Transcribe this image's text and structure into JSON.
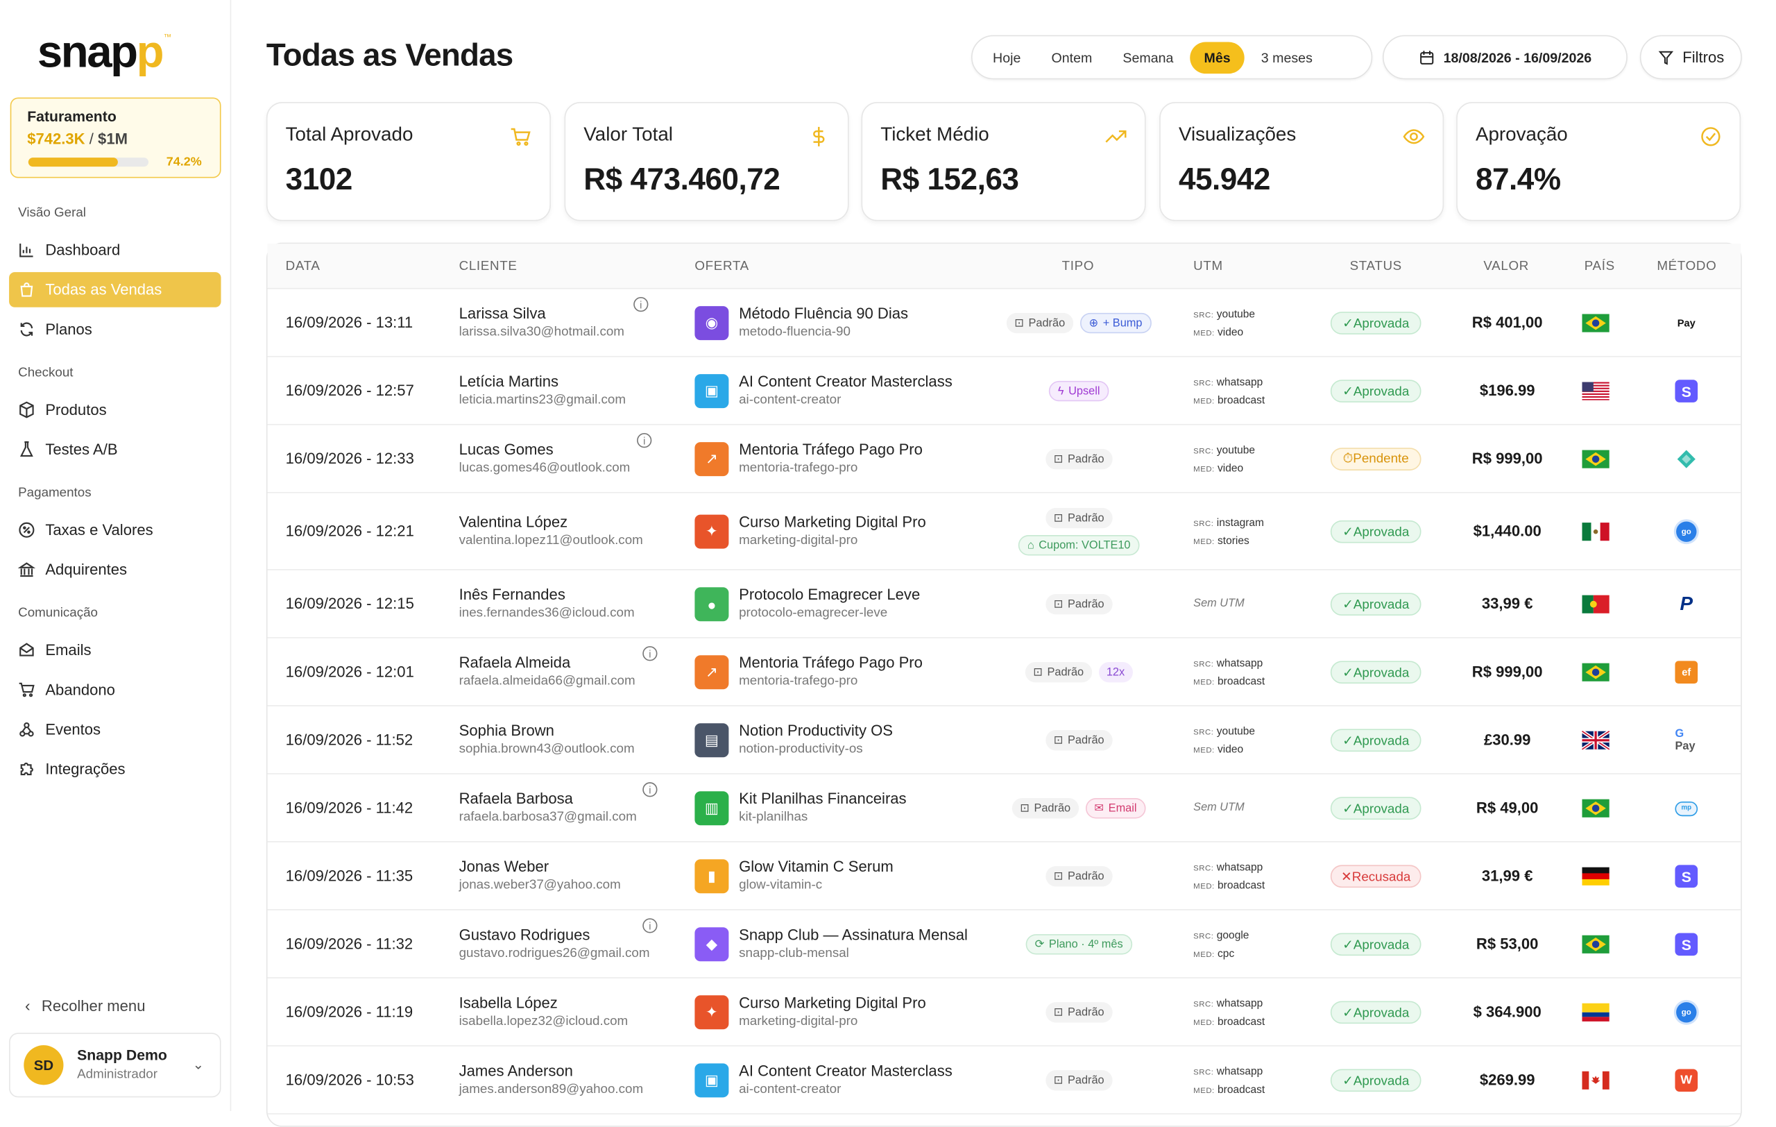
{
  "app": {
    "logo_a": "snap",
    "logo_b": "p",
    "logo_tm": "™"
  },
  "faturamento": {
    "title": "Faturamento",
    "current": "$742.3K",
    "separator": "/",
    "goal": "$1M",
    "percent": "74.2%",
    "progress": 0.742
  },
  "sidebar": {
    "sections": [
      "Visão Geral",
      "Checkout",
      "Pagamentos",
      "Comunicação"
    ],
    "items": [
      "Dashboard",
      "Todas as Vendas",
      "Planos",
      "Produtos",
      "Testes A/B",
      "Taxas e Valores",
      "Adquirentes",
      "Emails",
      "Abandono",
      "Eventos",
      "Integrações"
    ],
    "collapse": "Recolher menu",
    "user_initials": "SD",
    "user_name": "Snapp Demo",
    "user_role": "Administrador"
  },
  "header": {
    "title": "Todas as Vendas",
    "periods": [
      "Hoje",
      "Ontem",
      "Semana",
      "Mês",
      "3 meses"
    ],
    "active_period": "Mês",
    "date_range": "18/08/2026 - 16/09/2026",
    "filters": "Filtros"
  },
  "kpis": [
    {
      "label": "Total Aprovado",
      "value": "3102",
      "icon": "cart-icon"
    },
    {
      "label": "Valor Total",
      "value": "R$ 473.460,72",
      "icon": "dollar-icon"
    },
    {
      "label": "Ticket Médio",
      "value": "R$ 152,63",
      "icon": "trend-up-icon"
    },
    {
      "label": "Visualizações",
      "value": "45.942",
      "icon": "eye-icon"
    },
    {
      "label": "Aprovação",
      "value": "87.4%",
      "icon": "check-circle-icon"
    }
  ],
  "table": {
    "headers": [
      "DATA",
      "CLIENTE",
      "OFERTA",
      "TIPO",
      "UTM",
      "STATUS",
      "VALOR",
      "PAÍS",
      "MÉTODO"
    ],
    "utm_src": "SRC:",
    "utm_med": "MED:",
    "no_utm": "Sem UTM",
    "info": "i",
    "rows": [
      {
        "date": "16/09/2026 - 13:11",
        "name": "Larissa Silva",
        "email": "larissa.silva30@hotmail.com",
        "info": true,
        "product": "Método Fluência 90 Dias",
        "slug": "metodo-fluencia-90",
        "tipo": [
          "Padrão",
          "+ Bump"
        ],
        "src": "youtube",
        "med": "video",
        "status": "✓Aprovada",
        "value": "R$ 401,00",
        "country": "br",
        "method": "Pay"
      },
      {
        "date": "16/09/2026 - 12:57",
        "name": "Letícia Martins",
        "email": "leticia.martins23@gmail.com",
        "info": false,
        "product": "AI Content Creator Masterclass",
        "slug": "ai-content-creator",
        "tipo": [
          "Upsell"
        ],
        "src": "whatsapp",
        "med": "broadcast",
        "status": "✓Aprovada",
        "value": "$196.99",
        "country": "us",
        "method": "S"
      },
      {
        "date": "16/09/2026 - 12:33",
        "name": "Lucas Gomes",
        "email": "lucas.gomes46@outlook.com",
        "info": true,
        "product": "Mentoria Tráfego Pago Pro",
        "slug": "mentoria-trafego-pro",
        "tipo": [
          "Padrão"
        ],
        "src": "youtube",
        "med": "video",
        "status": "⏱Pendente",
        "value": "R$ 999,00",
        "country": "br",
        "method": "pix"
      },
      {
        "date": "16/09/2026 - 12:21",
        "name": "Valentina López",
        "email": "valentina.lopez11@outlook.com",
        "info": false,
        "product": "Curso Marketing Digital Pro",
        "slug": "marketing-digital-pro",
        "tipo": [
          "Padrão",
          "Cupom: VOLTE10"
        ],
        "src": "instagram",
        "med": "stories",
        "status": "✓Aprovada",
        "value": "$1,440.00",
        "country": "mx",
        "method": "go"
      },
      {
        "date": "16/09/2026 - 12:15",
        "name": "Inês Fernandes",
        "email": "ines.fernandes36@icloud.com",
        "info": false,
        "product": "Protocolo Emagrecer Leve",
        "slug": "protocolo-emagrecer-leve",
        "tipo": [
          "Padrão"
        ],
        "src": "",
        "med": "",
        "status": "✓Aprovada",
        "value": "33,99 €",
        "country": "pt",
        "method": "P"
      },
      {
        "date": "16/09/2026 - 12:01",
        "name": "Rafaela Almeida",
        "email": "rafaela.almeida66@gmail.com",
        "info": true,
        "product": "Mentoria Tráfego Pago Pro",
        "slug": "mentoria-trafego-pro",
        "tipo": [
          "Padrão",
          "12x"
        ],
        "src": "whatsapp",
        "med": "broadcast",
        "status": "✓Aprovada",
        "value": "R$ 999,00",
        "country": "br",
        "method": "ef"
      },
      {
        "date": "16/09/2026 - 11:52",
        "name": "Sophia Brown",
        "email": "sophia.brown43@outlook.com",
        "info": false,
        "product": "Notion Productivity OS",
        "slug": "notion-productivity-os",
        "tipo": [
          "Padrão"
        ],
        "src": "youtube",
        "med": "video",
        "status": "✓Aprovada",
        "value": "£30.99",
        "country": "gb",
        "method": "G Pay"
      },
      {
        "date": "16/09/2026 - 11:42",
        "name": "Rafaela Barbosa",
        "email": "rafaela.barbosa37@gmail.com",
        "info": true,
        "product": "Kit Planilhas Financeiras",
        "slug": "kit-planilhas",
        "tipo": [
          "Padrão",
          "Email"
        ],
        "src": "",
        "med": "",
        "status": "✓Aprovada",
        "value": "R$ 49,00",
        "country": "br",
        "method": "mp"
      },
      {
        "date": "16/09/2026 - 11:35",
        "name": "Jonas Weber",
        "email": "jonas.weber37@yahoo.com",
        "info": false,
        "product": "Glow Vitamin C Serum",
        "slug": "glow-vitamin-c",
        "tipo": [
          "Padrão"
        ],
        "src": "whatsapp",
        "med": "broadcast",
        "status": "✕Recusada",
        "value": "31,99 €",
        "country": "de",
        "method": "S"
      },
      {
        "date": "16/09/2026 - 11:32",
        "name": "Gustavo Rodrigues",
        "email": "gustavo.rodrigues26@gmail.com",
        "info": true,
        "product": "Snapp Club — Assinatura Mensal",
        "slug": "snapp-club-mensal",
        "tipo": [
          "Plano · 4º mês"
        ],
        "src": "google",
        "med": "cpc",
        "status": "✓Aprovada",
        "value": "R$ 53,00",
        "country": "br",
        "method": "S"
      },
      {
        "date": "16/09/2026 - 11:19",
        "name": "Isabella López",
        "email": "isabella.lopez32@icloud.com",
        "info": false,
        "product": "Curso Marketing Digital Pro",
        "slug": "marketing-digital-pro",
        "tipo": [
          "Padrão"
        ],
        "src": "whatsapp",
        "med": "broadcast",
        "status": "✓Aprovada",
        "value": "$ 364.900",
        "country": "co",
        "method": "go"
      },
      {
        "date": "16/09/2026 - 10:53",
        "name": "James Anderson",
        "email": "james.anderson89@yahoo.com",
        "info": false,
        "product": "AI Content Creator Masterclass",
        "slug": "ai-content-creator",
        "tipo": [
          "Padrão"
        ],
        "src": "whatsapp",
        "med": "broadcast",
        "status": "✓Aprovada",
        "value": "$269.99",
        "country": "ca",
        "method": "W"
      }
    ]
  },
  "colors": {
    "accent": "#f0b820",
    "approved": "#2f9950",
    "pending": "#d8930a",
    "refused": "#d83a3a"
  }
}
